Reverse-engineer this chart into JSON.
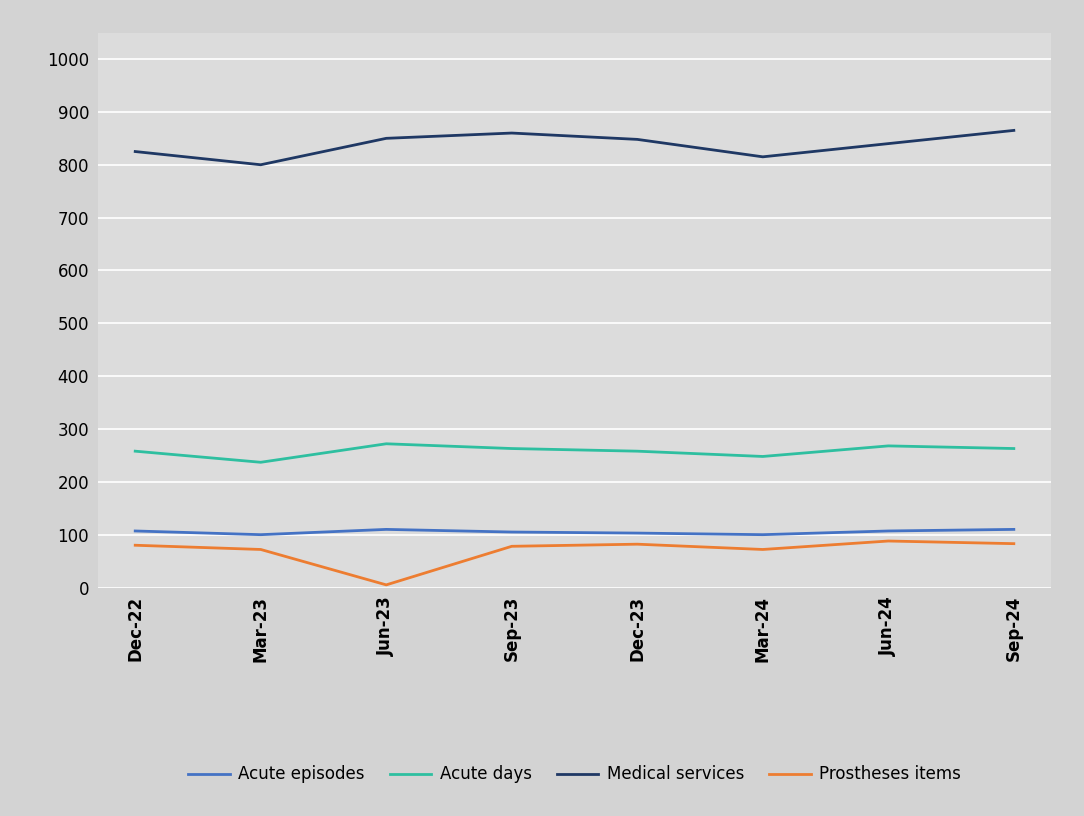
{
  "x_labels": [
    "Dec-22",
    "Mar-23",
    "Jun-23",
    "Sep-23",
    "Dec-23",
    "Mar-24",
    "Jun-24",
    "Sep-24"
  ],
  "acute_episodes": [
    107,
    100,
    110,
    105,
    103,
    100,
    107,
    110
  ],
  "acute_days": [
    258,
    237,
    272,
    263,
    258,
    248,
    268,
    263
  ],
  "medical_services": [
    825,
    800,
    850,
    860,
    848,
    815,
    840,
    865
  ],
  "prostheses_items": [
    80,
    72,
    5,
    78,
    82,
    72,
    88,
    83
  ],
  "colors": {
    "acute_episodes": "#4472C4",
    "acute_days": "#2EBFA0",
    "medical_services": "#1F3864",
    "prostheses_items": "#ED7D31"
  },
  "legend_labels": [
    "Acute episodes",
    "Acute days",
    "Medical services",
    "Prostheses items"
  ],
  "fig_background_color": "#D3D3D3",
  "plot_background_color": "#DCDCDC",
  "ylim": [
    0,
    1050
  ],
  "yticks": [
    0,
    100,
    200,
    300,
    400,
    500,
    600,
    700,
    800,
    900,
    1000
  ],
  "line_width": 2.0,
  "grid_color": "#FFFFFF",
  "tick_fontsize": 12,
  "legend_fontsize": 12
}
